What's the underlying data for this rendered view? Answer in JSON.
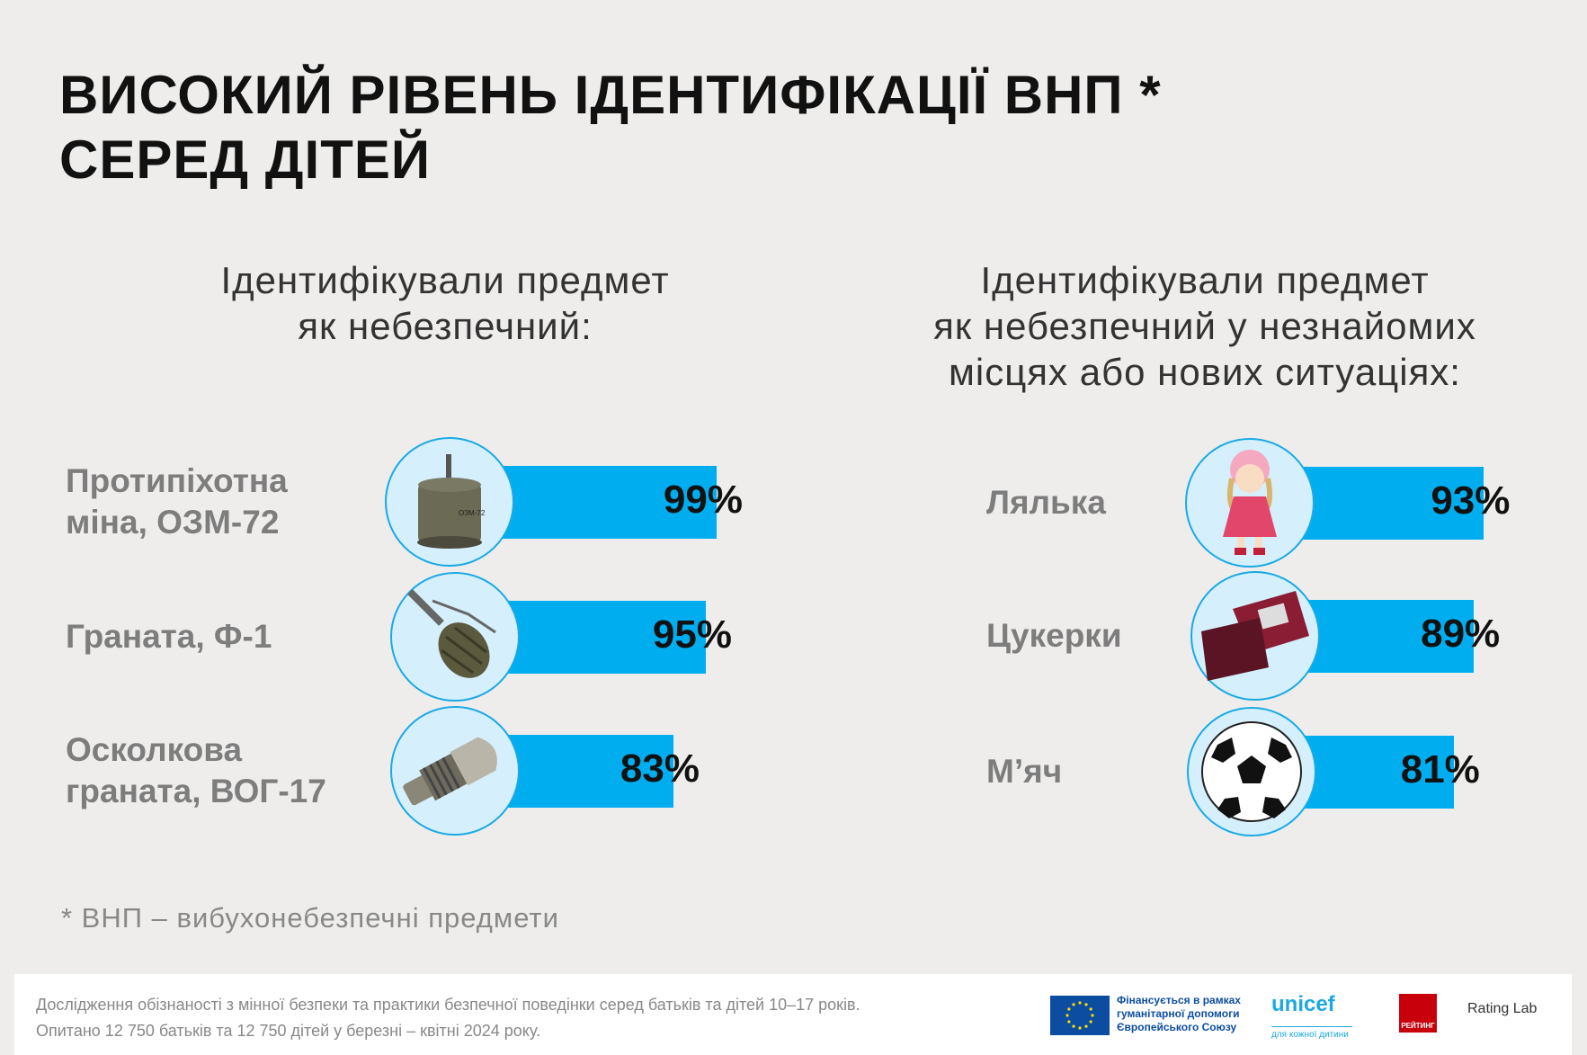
{
  "title": {
    "line1": "ВИСОКИЙ РІВЕНЬ ІДЕНТИФІКАЦІЇ ВНП *",
    "line2": "СЕРЕД ДІТЕЙ"
  },
  "chart_data": [
    {
      "type": "bar",
      "title": "Ідентифікували предмет як небезпечний:",
      "title_lines": [
        "Ідентифікували предмет",
        "як небезпечний:"
      ],
      "categories": [
        "Протипіхотна міна, ОЗМ-72",
        "Граната, Ф-1",
        "Осколкова граната, ВОГ-17"
      ],
      "label_lines": [
        [
          "Протипіхотна",
          "міна, ОЗМ-72"
        ],
        [
          "Граната, Ф-1"
        ],
        [
          "Осколкова",
          "граната, ВОГ-17"
        ]
      ],
      "values": [
        99,
        95,
        83
      ],
      "labels": [
        "99%",
        "95%",
        "83%"
      ],
      "unit": "%",
      "ylim": [
        0,
        100
      ],
      "icons": [
        "landmine-icon",
        "grenade-icon",
        "vog-grenade-icon"
      ]
    },
    {
      "type": "bar",
      "title": "Ідентифікували предмет як небезпечний у незнайомих місцях або нових ситуаціях:",
      "title_lines": [
        "Ідентифікували предмет",
        "як небезпечний у незнайомих",
        "місцях або нових ситуаціях:"
      ],
      "categories": [
        "Лялька",
        "Цукерки",
        "М'яч"
      ],
      "label_lines": [
        [
          "Лялька"
        ],
        [
          "Цукерки"
        ],
        [
          "М’яч"
        ]
      ],
      "values": [
        93,
        89,
        81
      ],
      "labels": [
        "93%",
        "89%",
        "81%"
      ],
      "unit": "%",
      "ylim": [
        0,
        100
      ],
      "icons": [
        "doll-icon",
        "candy-box-icon",
        "soccer-ball-icon"
      ]
    }
  ],
  "footnote": "* ВНП – вибухонебезпечні предмети",
  "footer": {
    "line1": "Дослідження обізнаності з мінної безпеки та практики безпечної поведінки серед батьків та дітей 10–17 років.",
    "line2": "Опитано 12 750 батьків та 12 750 дітей у березні – квітні 2024 року.",
    "eu_text": [
      "Фінансується в рамках",
      "гуманітарної допомоги",
      "Європейського Союзу"
    ],
    "unicef": "unicef",
    "unicef_tag": "для кожної дитини",
    "rating": "РЕЙТИНГ",
    "rating_lab": "Rating Lab"
  },
  "colors": {
    "bar": "#00aeef",
    "circle": "#d5effc",
    "label": "#7d7d7d"
  }
}
